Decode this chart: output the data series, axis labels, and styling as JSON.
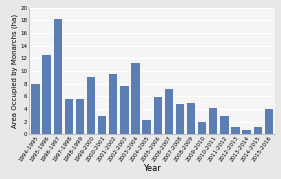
{
  "years": [
    "1994-1995",
    "1995-1996",
    "1996-1997",
    "1997-1998",
    "1998-1999",
    "1999-2000",
    "2000-2001",
    "2001-2002",
    "2002-2003",
    "2003-2004",
    "2004-2005",
    "2005-2006",
    "2006-2007",
    "2007-2008",
    "2008-2009",
    "2009-2010",
    "2010-2011",
    "2011-2012",
    "2012-2013",
    "2013-2014",
    "2014-2015",
    "2015-2016"
  ],
  "values": [
    7.9,
    12.5,
    18.2,
    5.6,
    5.5,
    9.0,
    2.8,
    9.5,
    7.6,
    11.2,
    2.2,
    5.9,
    7.2,
    4.8,
    5.0,
    1.9,
    4.1,
    2.9,
    1.1,
    0.67,
    1.1,
    4.0
  ],
  "bar_color": "#5b7fb5",
  "xlabel": "Year",
  "ylabel": "Area Occupied by Monarchs (ha)",
  "ylim": [
    0,
    20
  ],
  "yticks": [
    0,
    2,
    4,
    6,
    8,
    10,
    12,
    14,
    16,
    18,
    20
  ],
  "bg_color": "#e8e8e8",
  "plot_bg_color": "#f5f5f5",
  "grid_color": "#ffffff",
  "ylabel_fontsize": 5.0,
  "xlabel_fontsize": 6.0,
  "tick_fontsize": 4.0
}
